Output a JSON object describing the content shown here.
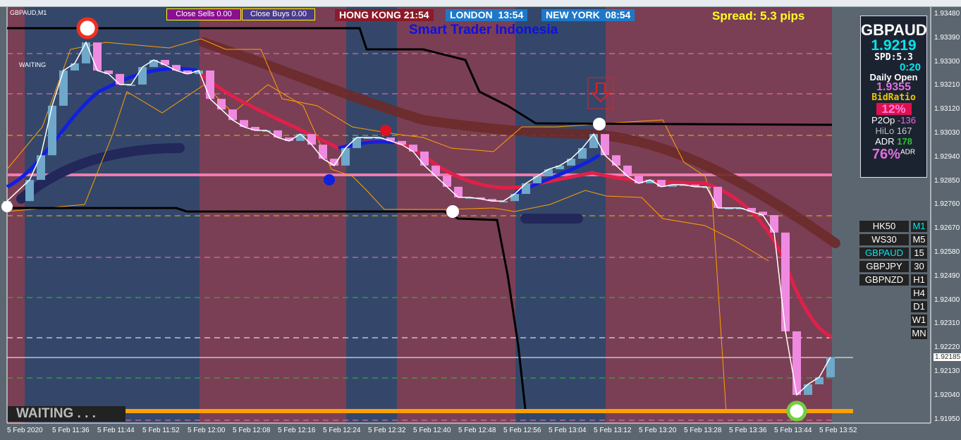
{
  "window": {
    "symbol_label": "GBPAUD,M1"
  },
  "buttons": {
    "close_sells": "Close Sells 0.00",
    "close_buys": "Close Buys 0.00"
  },
  "sessions": [
    {
      "label": "HONG KONG 21:54",
      "color": "#8b1a2a"
    },
    {
      "label": "LONDON  13:54",
      "color": "#1e78c8"
    },
    {
      "label": "NEW YORK  08:54",
      "color": "#1e78c8"
    }
  ],
  "watermark": "Smart Trader Indonesia",
  "spread": "Spread: 5.3 pips",
  "status_small": "WAITING",
  "status_big": "WAITING . . .",
  "panel": {
    "symbol": "GBPAUD",
    "price": "1.9219",
    "spd": "SPD:5.3",
    "timer": "0:20",
    "daily_open_label": "Daily Open",
    "daily_open": "1.9355",
    "bidratio_label": "BidRatio",
    "bidratio": "12%",
    "p2op_label": "P2Op",
    "p2op": "-136",
    "hilo_label": "HiLo",
    "hilo": "167",
    "adr_label": "ADR",
    "adr": "178",
    "adr_pct": "76%",
    "adr_sup": "ADR"
  },
  "symbols": [
    {
      "label": "HK50",
      "active": false
    },
    {
      "label": "WS30",
      "active": false
    },
    {
      "label": "GBPAUD",
      "active": true
    },
    {
      "label": "GBPJPY",
      "active": false
    },
    {
      "label": "GBPNZD",
      "active": false
    }
  ],
  "timeframes": [
    {
      "label": "M1",
      "active": true
    },
    {
      "label": "M5",
      "active": false
    },
    {
      "label": "15",
      "active": false
    },
    {
      "label": "30",
      "active": false
    },
    {
      "label": "H1",
      "active": false
    },
    {
      "label": "H4",
      "active": false
    },
    {
      "label": "D1",
      "active": false
    },
    {
      "label": "W1",
      "active": false
    },
    {
      "label": "MN",
      "active": false
    }
  ],
  "colors": {
    "up_candle": "#6fa8c8",
    "down_candle": "#f08ae0",
    "asia_zone": "#7a3f55",
    "london_zone": "#34476b",
    "accent_orange": "#ffa000"
  },
  "chart_data": {
    "type": "candlestick",
    "symbol": "GBPAUD",
    "timeframe": "M1",
    "current_price": "1.92185",
    "ylim": [
      1.9195,
      1.9352
    ],
    "y_ticks": [
      "1.93480",
      "1.93390",
      "1.93300",
      "1.93210",
      "1.93120",
      "1.93030",
      "1.92940",
      "1.92850",
      "1.92760",
      "1.92670",
      "1.92580",
      "1.92490",
      "1.92400",
      "1.92310",
      "1.92220",
      "1.92130",
      "1.92040",
      "1.91950"
    ],
    "x_ticks": [
      "5 Feb 2020",
      "5 Feb 11:36",
      "5 Feb 11:44",
      "5 Feb 11:52",
      "5 Feb 12:00",
      "5 Feb 12:08",
      "5 Feb 12:16",
      "5 Feb 12:24",
      "5 Feb 12:32",
      "5 Feb 12:40",
      "5 Feb 12:48",
      "5 Feb 12:56",
      "5 Feb 13:04",
      "5 Feb 13:12",
      "5 Feb 13:20",
      "5 Feb 13:28",
      "5 Feb 13:36",
      "5 Feb 13:44",
      "5 Feb 13:52"
    ],
    "time": [
      "11:28",
      "11:32",
      "11:34",
      "11:36",
      "11:38",
      "11:40",
      "11:42",
      "11:44",
      "11:46",
      "11:48",
      "11:50",
      "11:52",
      "11:54",
      "11:56",
      "11:58",
      "12:00",
      "12:02",
      "12:04",
      "12:06",
      "12:08",
      "12:10",
      "12:12",
      "12:14",
      "12:16",
      "12:18",
      "12:20",
      "12:22",
      "12:24",
      "12:26",
      "12:28",
      "12:30",
      "12:32",
      "12:34",
      "12:36",
      "12:38",
      "12:40",
      "12:42",
      "12:44",
      "12:46",
      "12:48",
      "12:50",
      "12:52",
      "12:54",
      "12:56",
      "12:58",
      "13:00",
      "13:02",
      "13:04",
      "13:06",
      "13:08",
      "13:10",
      "13:12",
      "13:14",
      "13:16",
      "13:18",
      "13:20",
      "13:22",
      "13:24",
      "13:26",
      "13:28",
      "13:30",
      "13:32",
      "13:34",
      "13:36",
      "13:38",
      "13:40",
      "13:42",
      "13:44",
      "13:46",
      "13:48",
      "13:50",
      "13:52",
      "13:54"
    ],
    "close": [
      1.92774,
      1.92854,
      1.92947,
      1.93134,
      1.93267,
      1.93294,
      1.93373,
      1.93267,
      1.93254,
      1.93214,
      1.93214,
      1.9328,
      1.93307,
      1.93288,
      1.93267,
      1.93254,
      1.93267,
      1.9316,
      1.9312,
      1.9308,
      1.93054,
      1.93041,
      1.93041,
      1.93014,
      1.93001,
      1.93027,
      1.92987,
      1.92934,
      1.92908,
      1.92974,
      1.93014,
      1.93014,
      1.93014,
      1.93001,
      1.92987,
      1.92961,
      1.92908,
      1.92868,
      1.92828,
      1.92788,
      1.92788,
      1.92782,
      1.92774,
      1.92774,
      1.92801,
      1.92841,
      1.92868,
      1.92894,
      1.92908,
      1.92934,
      1.92974,
      1.93027,
      1.92947,
      1.92908,
      1.92868,
      1.92841,
      1.92854,
      1.92828,
      1.92836,
      1.92836,
      1.92828,
      1.92828,
      1.92748,
      1.92748,
      1.92748,
      1.92734,
      1.92721,
      1.92655,
      1.92282,
      1.92042,
      1.92082,
      1.92109,
      1.92185
    ]
  }
}
